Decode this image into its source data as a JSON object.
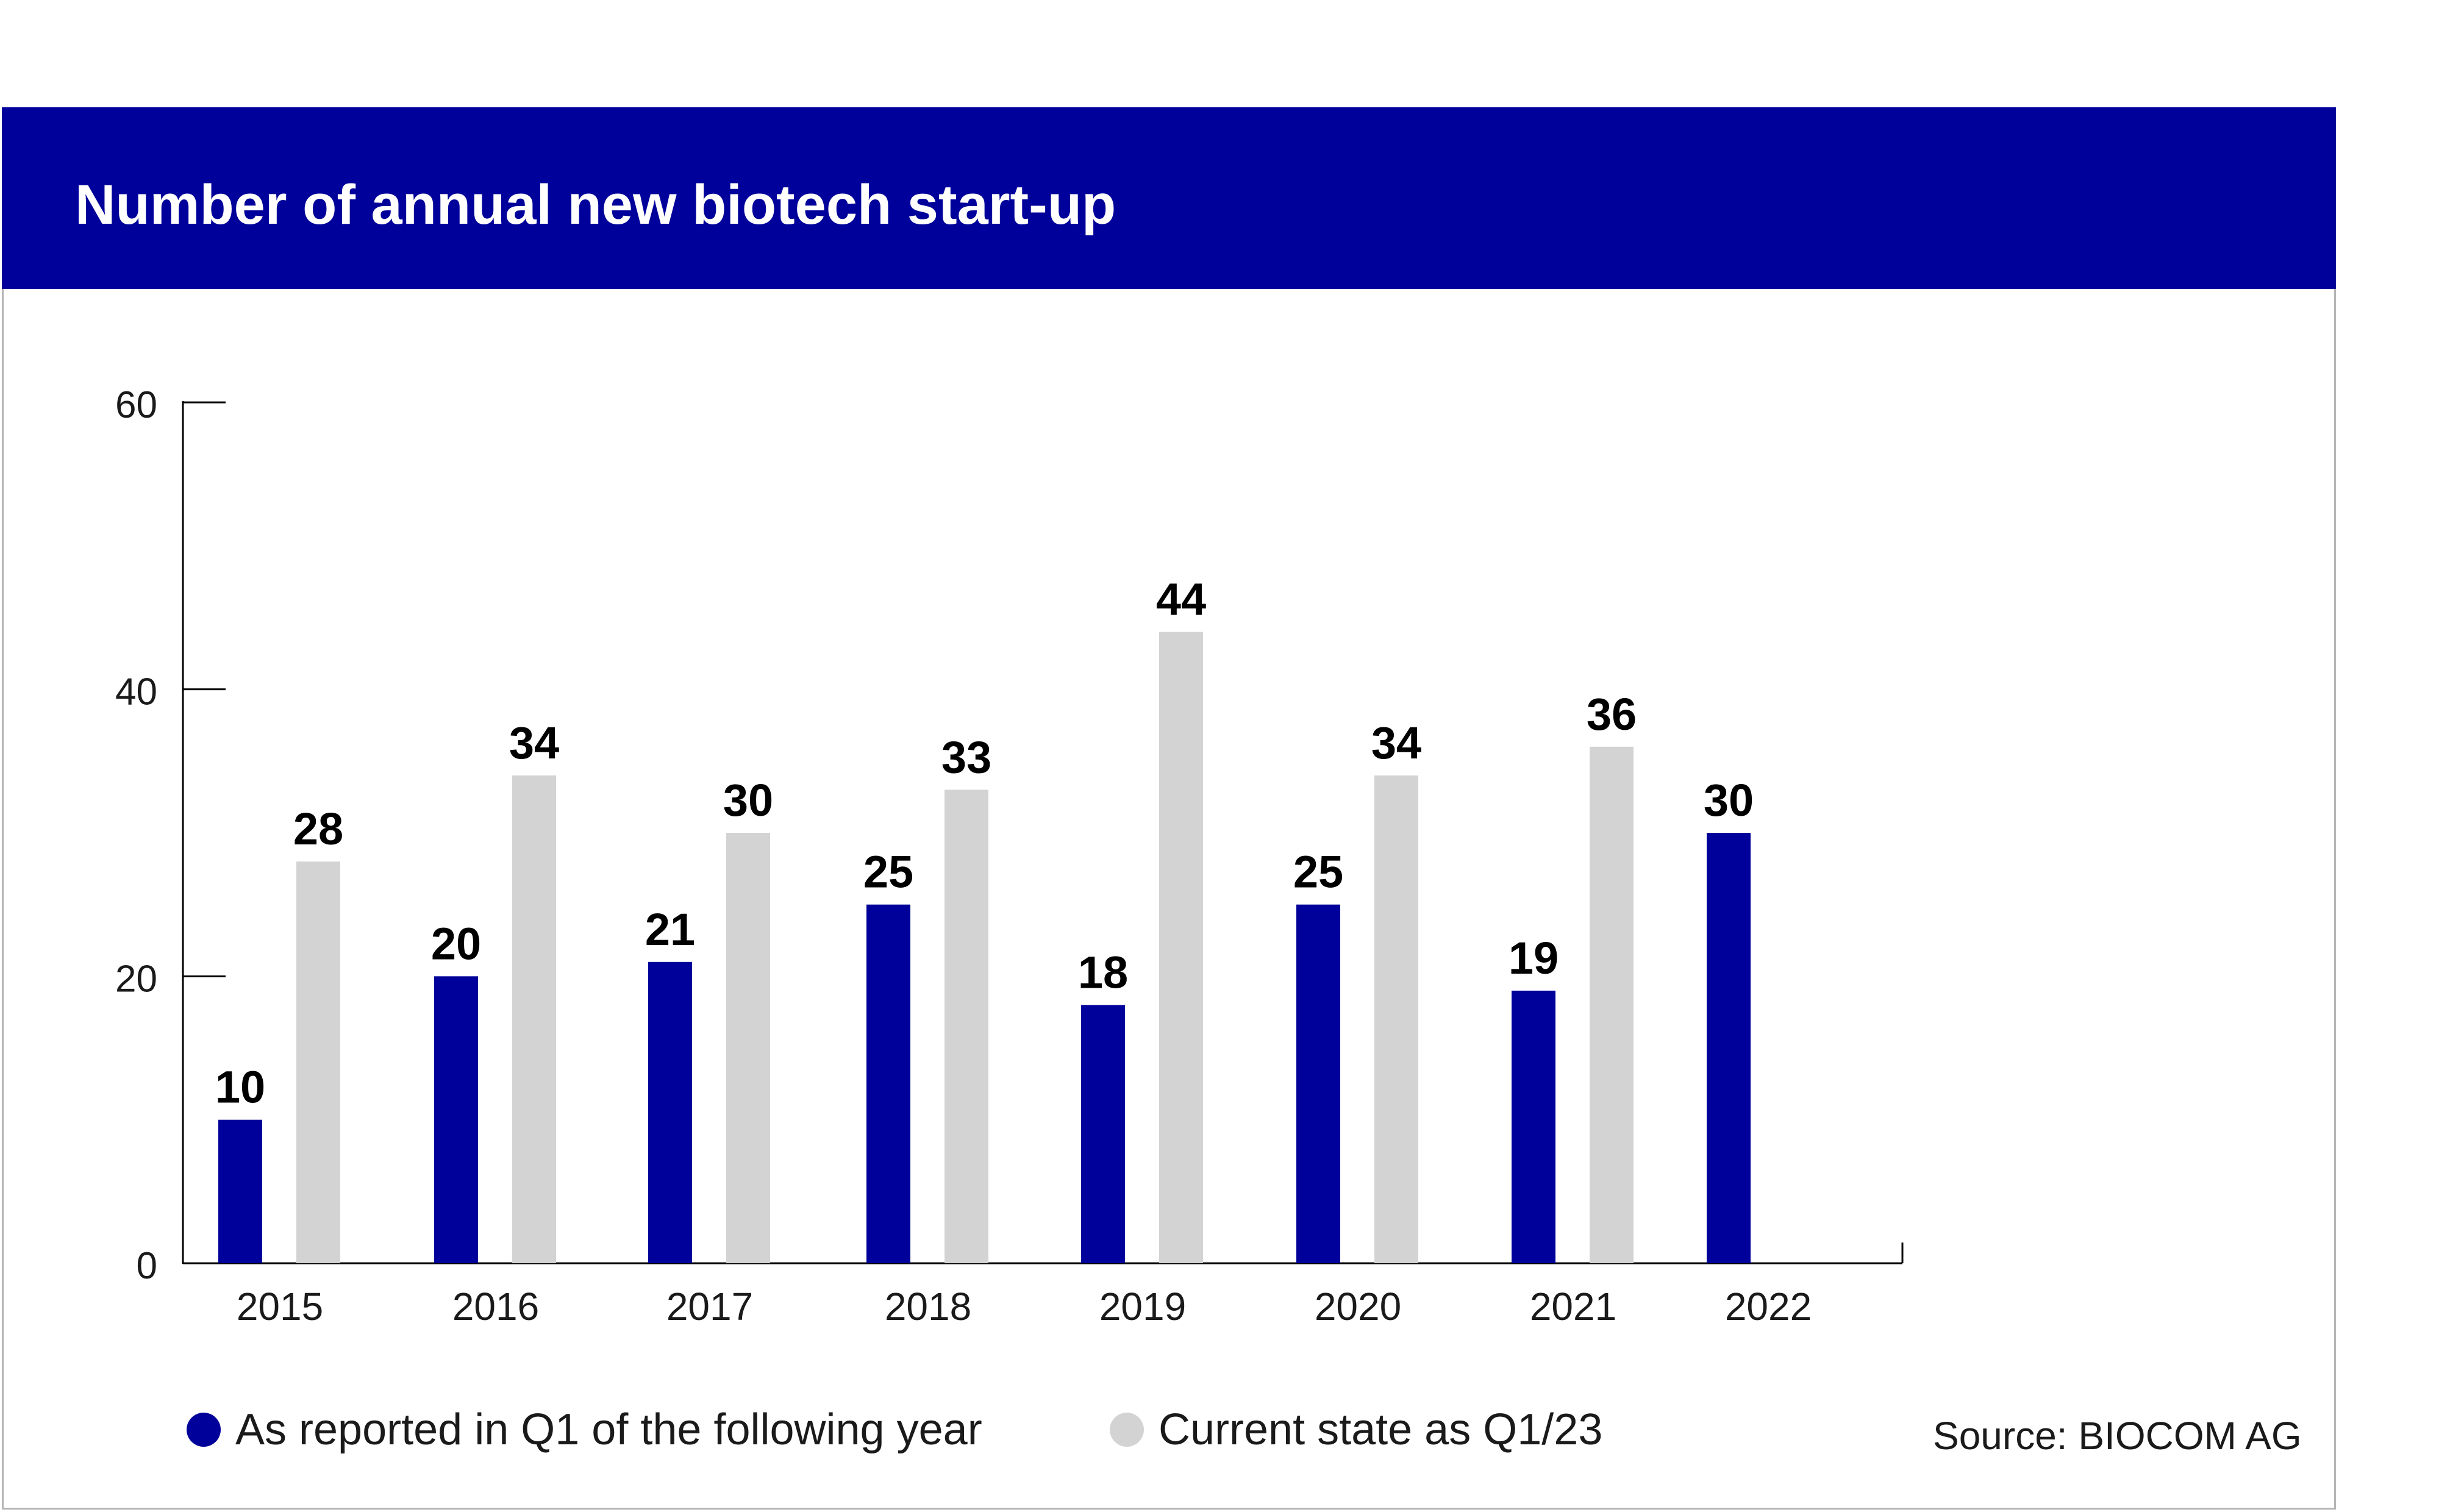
{
  "title": "Number of annual new biotech start-up",
  "source": "Source: BIOCOM AG",
  "colors": {
    "header": "#00009a",
    "reported": "#00009a",
    "current": "#d3d3d3"
  },
  "legend": [
    {
      "label": "As reported in Q1 of the following year",
      "color": "#00009a"
    },
    {
      "label": "Current state as Q1/23",
      "color": "#d3d3d3"
    }
  ],
  "chart_data": {
    "type": "bar",
    "title": "Number of annual new biotech start-up",
    "categories": [
      "2015",
      "2016",
      "2017",
      "2018",
      "2019",
      "2020",
      "2021",
      "2022"
    ],
    "series": [
      {
        "name": "As reported in Q1 of the following year",
        "values": [
          10,
          20,
          21,
          25,
          18,
          25,
          19,
          30
        ]
      },
      {
        "name": "Current state as Q1/23",
        "values": [
          28,
          34,
          30,
          33,
          44,
          34,
          36,
          null
        ]
      }
    ],
    "yticks": [
      "0",
      "20",
      "40",
      "60"
    ],
    "ylim": [
      0,
      60
    ],
    "grid": false,
    "legend_position": "bottom"
  }
}
